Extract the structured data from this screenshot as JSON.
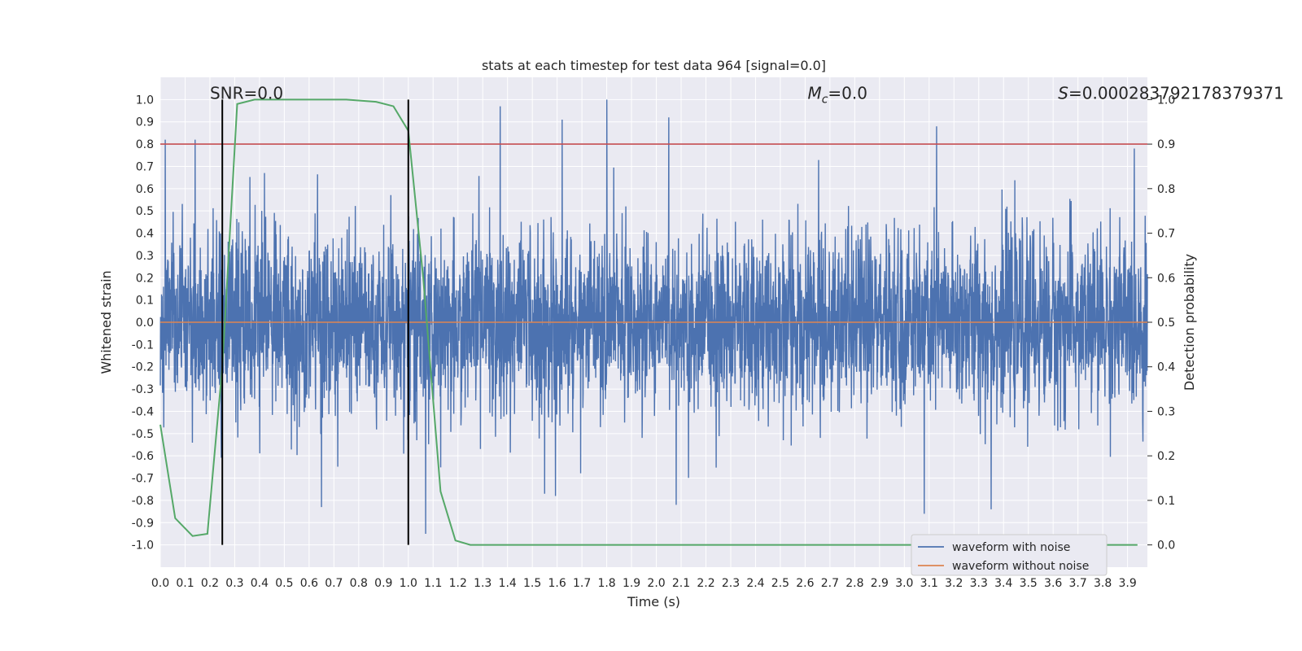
{
  "chart_data": {
    "type": "line",
    "title": "stats at each timestep for test data 964 [signal=0.0]",
    "xlabel": "Time (s)",
    "ylabel": "Whitened strain",
    "y2label": "Detection probability",
    "xlim": [
      0.0,
      3.98
    ],
    "ylim": [
      -1.1,
      1.1
    ],
    "y2lim": [
      -0.05,
      1.05
    ],
    "x_ticks": [
      "0.0",
      "0.1",
      "0.2",
      "0.3",
      "0.4",
      "0.5",
      "0.6",
      "0.7",
      "0.8",
      "0.9",
      "1.0",
      "1.1",
      "1.2",
      "1.3",
      "1.4",
      "1.5",
      "1.6",
      "1.7",
      "1.8",
      "1.9",
      "2.0",
      "2.1",
      "2.2",
      "2.3",
      "2.4",
      "2.5",
      "2.6",
      "2.7",
      "2.8",
      "2.9",
      "3.0",
      "3.1",
      "3.2",
      "3.3",
      "3.4",
      "3.5",
      "3.6",
      "3.7",
      "3.8",
      "3.9"
    ],
    "y_ticks": [
      "1.0",
      "0.9",
      "0.8",
      "0.7",
      "0.6",
      "0.5",
      "0.4",
      "0.3",
      "0.2",
      "0.1",
      "0.0",
      "-0.1",
      "-0.2",
      "-0.3",
      "-0.4",
      "-0.5",
      "-0.6",
      "-0.7",
      "-0.8",
      "-0.9",
      "-1.0"
    ],
    "y2_ticks": [
      "1.0",
      "0.9",
      "0.8",
      "0.7",
      "0.6",
      "0.5",
      "0.4",
      "0.3",
      "0.2",
      "0.1",
      "0.0"
    ],
    "grid": true,
    "legend_position": "lower-right",
    "annotations": {
      "snr": "SNR=0.0",
      "mc": "M",
      "mc_sub": "c",
      "mc_value": "=0.0",
      "s": "S",
      "s_value": "=0.000283792178379371"
    },
    "vertical_lines": [
      0.25,
      1.0
    ],
    "threshold_y2": 0.9,
    "series": [
      {
        "name": "waveform with noise",
        "color": "#4c72b0",
        "note_summary": "dense noise, roughly symmetric",
        "peak_high": [
          [
            0.02,
            0.82
          ],
          [
            0.14,
            0.82
          ],
          [
            1.37,
            0.97
          ],
          [
            1.8,
            1.0
          ],
          [
            2.05,
            0.92
          ],
          [
            1.62,
            0.91
          ],
          [
            3.13,
            0.88
          ],
          [
            0.42,
            0.67
          ]
        ],
        "peak_low": [
          [
            1.07,
            -0.95
          ],
          [
            3.08,
            -0.86
          ],
          [
            3.35,
            -0.84
          ],
          [
            0.65,
            -0.83
          ],
          [
            2.08,
            -0.82
          ],
          [
            1.55,
            -0.77
          ]
        ]
      },
      {
        "name": "waveform without noise",
        "color": "#dd8452",
        "x": [
          0.0,
          3.98
        ],
        "y": [
          0.0,
          0.0
        ]
      },
      {
        "name": "",
        "axis": "y2",
        "color": "#55a868",
        "x": [
          0.0,
          0.06,
          0.13,
          0.19,
          0.25,
          0.31,
          0.38,
          0.5,
          0.75,
          0.87,
          0.94,
          1.0,
          1.06,
          1.13,
          1.19,
          1.25,
          1.5,
          2.0,
          2.5,
          3.0,
          3.5,
          3.94
        ],
        "y": [
          0.27,
          0.06,
          0.02,
          0.025,
          0.4,
          0.99,
          1.0,
          1.0,
          1.0,
          0.995,
          0.985,
          0.93,
          0.6,
          0.12,
          0.01,
          0.0,
          0.0,
          0.0,
          0.0,
          0.0,
          0.0,
          0.0
        ]
      }
    ]
  },
  "colors": {
    "plot_bg": "#eaeaf2",
    "grid": "#ffffff",
    "noise": "#4c72b0",
    "clean": "#dd8452",
    "prob": "#55a868",
    "threshold": "#c44e52",
    "vline": "#000000"
  }
}
